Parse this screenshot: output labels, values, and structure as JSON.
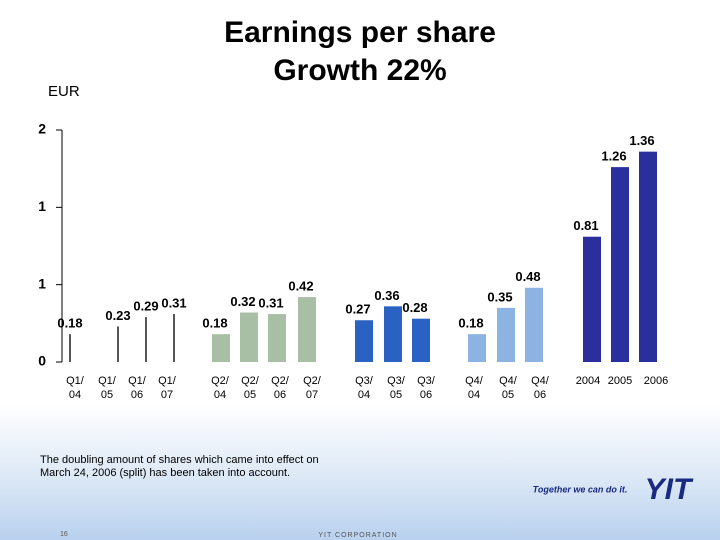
{
  "chart_data": {
    "type": "bar",
    "title": [
      "Earnings per share",
      "Growth 22%"
    ],
    "unit": "EUR",
    "categories": [
      "Q1/ 04",
      "Q1/ 05",
      "Q1/ 06",
      "Q1/ 07",
      "Q2/ 04",
      "Q2/ 05",
      "Q2/ 06",
      "Q2/ 07",
      "Q3/ 04",
      "Q3/ 05",
      "Q3/ 06",
      "Q4/ 04",
      "Q4/ 05",
      "Q4/ 06",
      "2004",
      "2005",
      "2006"
    ],
    "values": [
      0.18,
      0.23,
      0.29,
      0.31,
      0.18,
      0.32,
      0.31,
      0.42,
      0.27,
      0.36,
      0.28,
      0.18,
      0.35,
      0.48,
      0.81,
      1.26,
      1.36
    ],
    "colors": [
      "#555555",
      "#555555",
      "#555555",
      "#555555",
      "#a9bfa5",
      "#a9bfa5",
      "#a9bfa5",
      "#a9bfa5",
      "#2a62c4",
      "#2a62c4",
      "#2a62c4",
      "#8db3e2",
      "#8db3e2",
      "#8db3e2",
      "#2b2f9e",
      "#2b2f9e",
      "#2b2f9e"
    ],
    "ylim": [
      0,
      1.5
    ],
    "yticks": [
      0,
      {
        "value": 0.5,
        "label": "1"
      },
      {
        "value": 1,
        "label": "1"
      },
      {
        "value": 1.5,
        "label": "2"
      }
    ],
    "note": [
      "The doubling amount of shares which came into effect on",
      "March 24, 2006 (split) has been taken into account."
    ],
    "page_number": "16",
    "footer": "YIT CORPORATION",
    "slogan": "Together we can do it.",
    "logo": "YIT"
  }
}
